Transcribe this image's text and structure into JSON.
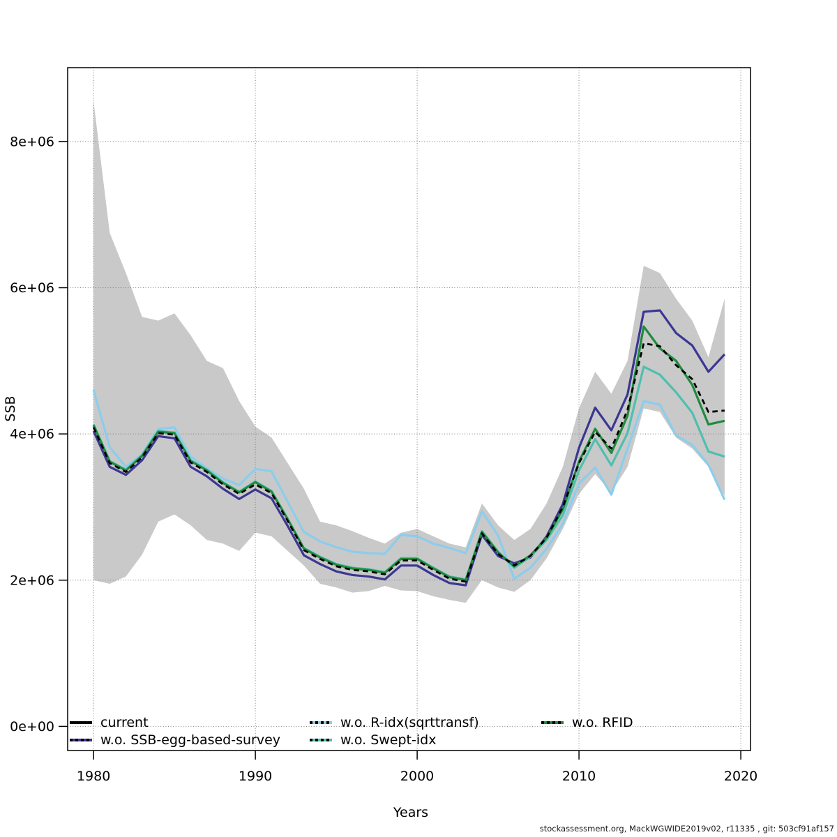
{
  "footer": {
    "text": "stockassessment.org, MackWGWIDE2019v02, r11335 , git: 503cf91af157"
  },
  "chart_data": {
    "type": "line",
    "title": "",
    "xlabel": "Years",
    "ylabel": "SSB",
    "grid": "dotted",
    "legend_position": "bottom-inside",
    "xlim": [
      1978.4,
      2020.6
    ],
    "ylim": [
      -0.33,
      9.01
    ],
    "y_unit_multiplier": 1000000,
    "x_ticks": {
      "values": [
        1980,
        1990,
        2000,
        2010,
        2020
      ],
      "labels": [
        "1980",
        "1990",
        "2000",
        "2010",
        "2020"
      ]
    },
    "y_ticks": {
      "values": [
        0,
        2,
        4,
        6,
        8
      ],
      "labels": [
        "0e+00",
        "2e+06",
        "4e+06",
        "6e+06",
        "8e+06"
      ]
    },
    "x": [
      1980,
      1981,
      1982,
      1983,
      1984,
      1985,
      1986,
      1987,
      1988,
      1989,
      1990,
      1991,
      1992,
      1993,
      1994,
      1995,
      1996,
      1997,
      1998,
      1999,
      2000,
      2001,
      2002,
      2003,
      2004,
      2005,
      2006,
      2007,
      2008,
      2009,
      2010,
      2011,
      2012,
      2013,
      2014,
      2015,
      2016,
      2017,
      2018,
      2019
    ],
    "band": {
      "color": "#C9C9C9",
      "upper": [
        8.55,
        6.75,
        6.2,
        5.6,
        5.55,
        5.65,
        5.35,
        5.0,
        4.9,
        4.45,
        4.1,
        3.95,
        3.6,
        3.25,
        2.8,
        2.75,
        2.67,
        2.58,
        2.5,
        2.65,
        2.7,
        2.6,
        2.5,
        2.45,
        3.05,
        2.75,
        2.55,
        2.7,
        3.05,
        3.55,
        4.35,
        4.85,
        4.55,
        5.0,
        6.3,
        6.2,
        5.85,
        5.55,
        5.05,
        5.85
      ],
      "lower": [
        2.0,
        1.95,
        2.05,
        2.35,
        2.8,
        2.9,
        2.75,
        2.55,
        2.5,
        2.4,
        2.65,
        2.6,
        2.4,
        2.2,
        1.95,
        1.9,
        1.83,
        1.85,
        1.92,
        1.86,
        1.85,
        1.78,
        1.73,
        1.69,
        2.0,
        1.9,
        1.84,
        2.0,
        2.3,
        2.7,
        3.18,
        3.45,
        3.2,
        3.55,
        4.35,
        4.3,
        3.95,
        3.8,
        3.55,
        3.15
      ]
    },
    "series": [
      {
        "name": "current",
        "color": "#000000",
        "style": "dashed",
        "values": [
          4.09,
          3.6,
          3.48,
          3.68,
          4.01,
          3.99,
          3.61,
          3.48,
          3.31,
          3.18,
          3.31,
          3.19,
          2.81,
          2.41,
          2.29,
          2.19,
          2.14,
          2.12,
          2.08,
          2.27,
          2.27,
          2.14,
          2.02,
          1.98,
          2.64,
          2.36,
          2.2,
          2.33,
          2.58,
          3.0,
          3.6,
          4.03,
          3.8,
          4.33,
          5.24,
          5.2,
          4.94,
          4.75,
          4.3,
          4.32
        ]
      },
      {
        "name": "w.o. SSB-egg-based-survey",
        "color": "#3B3693",
        "style": "solid",
        "values": [
          4.04,
          3.55,
          3.44,
          3.64,
          3.97,
          3.94,
          3.55,
          3.42,
          3.25,
          3.11,
          3.24,
          3.12,
          2.74,
          2.34,
          2.22,
          2.12,
          2.07,
          2.05,
          2.01,
          2.2,
          2.2,
          2.07,
          1.96,
          1.93,
          2.62,
          2.33,
          2.23,
          2.31,
          2.6,
          3.04,
          3.81,
          4.36,
          4.05,
          4.54,
          5.67,
          5.69,
          5.38,
          5.21,
          4.85,
          5.09
        ]
      },
      {
        "name": "w.o. R-idx(sqrttransf)",
        "color": "#8BCDEC",
        "style": "solid",
        "values": [
          4.6,
          3.82,
          3.55,
          3.72,
          4.07,
          4.09,
          3.69,
          3.53,
          3.39,
          3.3,
          3.52,
          3.49,
          3.07,
          2.66,
          2.53,
          2.45,
          2.39,
          2.37,
          2.36,
          2.62,
          2.6,
          2.5,
          2.44,
          2.37,
          2.94,
          2.61,
          2.02,
          2.17,
          2.43,
          2.77,
          3.32,
          3.54,
          3.17,
          3.8,
          4.45,
          4.4,
          3.98,
          3.85,
          3.58,
          3.1
        ]
      },
      {
        "name": "w.o. Swept-idx",
        "color": "#4FBFAE",
        "style": "solid",
        "values": [
          4.13,
          3.63,
          3.51,
          3.71,
          4.04,
          4.02,
          3.64,
          3.51,
          3.34,
          3.21,
          3.35,
          3.22,
          2.84,
          2.44,
          2.32,
          2.22,
          2.17,
          2.15,
          2.11,
          2.3,
          2.3,
          2.17,
          2.05,
          2.01,
          2.67,
          2.39,
          2.17,
          2.32,
          2.55,
          2.89,
          3.5,
          3.93,
          3.57,
          4.01,
          4.92,
          4.81,
          4.57,
          4.29,
          3.76,
          3.69
        ]
      },
      {
        "name": "w.o. RFID",
        "color": "#1F8B3D",
        "style": "solid",
        "values": [
          4.12,
          3.62,
          3.5,
          3.7,
          4.03,
          4.01,
          3.63,
          3.5,
          3.33,
          3.2,
          3.34,
          3.21,
          2.83,
          2.43,
          2.31,
          2.21,
          2.16,
          2.14,
          2.1,
          2.29,
          2.29,
          2.16,
          2.04,
          2.0,
          2.66,
          2.38,
          2.19,
          2.34,
          2.58,
          2.97,
          3.62,
          4.07,
          3.74,
          4.25,
          5.47,
          5.17,
          5.0,
          4.67,
          4.13,
          4.18
        ]
      }
    ]
  }
}
